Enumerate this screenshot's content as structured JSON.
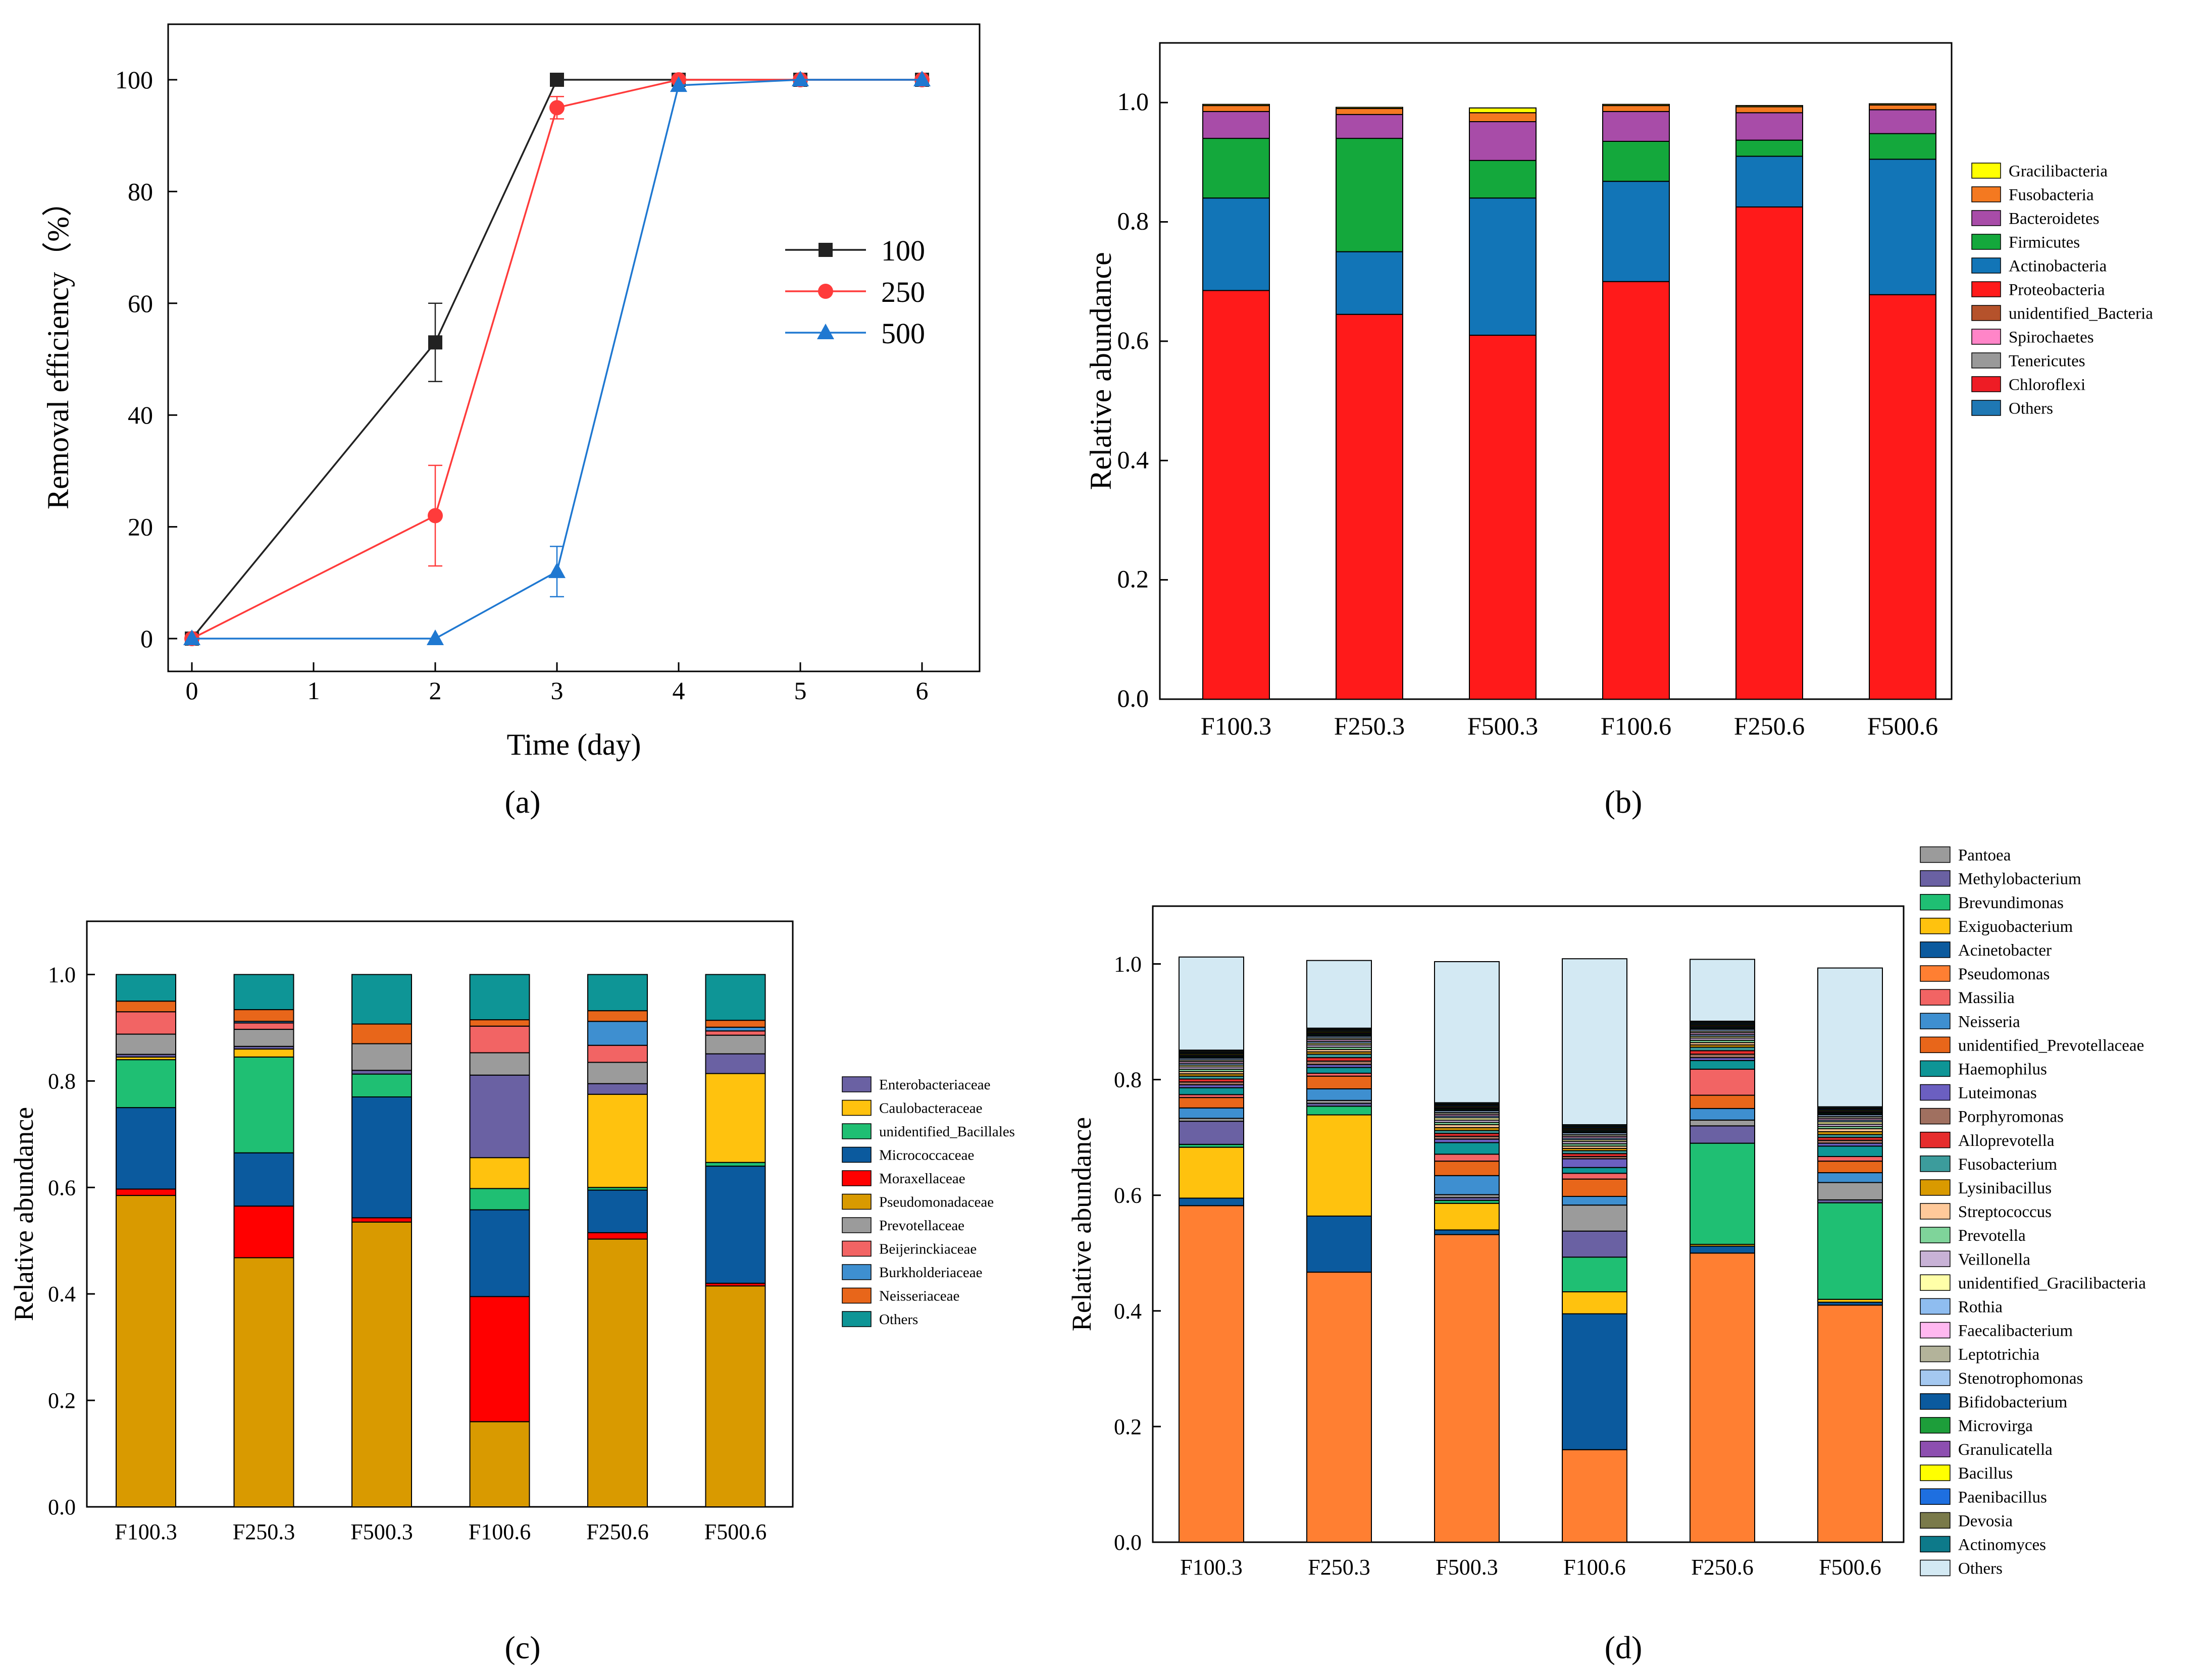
{
  "chart_data": [
    {
      "panel_label": "(a)",
      "type": "line",
      "xlabel": "Time (day)",
      "ylabel": "Removal efficiency（%）",
      "xlim": [
        -0.15,
        6.5
      ],
      "ylim": [
        -5,
        110
      ],
      "xticks": [
        "0",
        "1",
        "2",
        "3",
        "4",
        "5",
        "6"
      ],
      "yticks": [
        "0",
        "20",
        "40",
        "60",
        "80",
        "100"
      ],
      "legend_position": "center-right",
      "series": [
        {
          "name": "100",
          "color": "#222222",
          "marker": "square",
          "x": [
            0,
            2,
            3,
            4,
            5,
            6
          ],
          "y": [
            0,
            53,
            100,
            100,
            100,
            100
          ],
          "err": [
            0,
            7,
            0,
            0,
            0,
            0
          ]
        },
        {
          "name": "250",
          "color": "#ff3b3b",
          "marker": "circle",
          "x": [
            0,
            2,
            3,
            4,
            5,
            6
          ],
          "y": [
            0,
            22,
            95,
            100,
            100,
            100
          ],
          "err": [
            0,
            9,
            2,
            0,
            0,
            0
          ]
        },
        {
          "name": "500",
          "color": "#1f78d1",
          "marker": "triangle",
          "x": [
            0,
            2,
            3,
            4,
            5,
            6
          ],
          "y": [
            0,
            0,
            12,
            99,
            100,
            100
          ],
          "err": [
            0,
            0,
            4.5,
            0,
            0,
            0
          ]
        }
      ]
    },
    {
      "panel_label": "(b)",
      "type": "bar",
      "stacked": true,
      "xlabel": "",
      "ylabel": "Relative abundance",
      "ylim": [
        0,
        1.1
      ],
      "yticks": [
        "0.0",
        "0.2",
        "0.4",
        "0.6",
        "0.8",
        "1.0"
      ],
      "categories": [
        "F100.3",
        "F250.3",
        "F500.3",
        "F100.6",
        "F250.6",
        "F500.6"
      ],
      "legend_position": "right",
      "series": [
        {
          "name": "Others",
          "color": "#1f78b4",
          "values": [
            0,
            0,
            0,
            0,
            0,
            0
          ]
        },
        {
          "name": "Chloroflexi",
          "color": "#ee1c25",
          "values": [
            0,
            0,
            0,
            0,
            0,
            0
          ]
        },
        {
          "name": "Tenericutes",
          "color": "#999999",
          "values": [
            0,
            0,
            0,
            0,
            0,
            0
          ]
        },
        {
          "name": "Spirochaetes",
          "color": "#ff85c8",
          "values": [
            0,
            0,
            0,
            0,
            0,
            0
          ]
        },
        {
          "name": "unidentified_Bacteria",
          "color": "#b5522b",
          "values": [
            0,
            0,
            0,
            0,
            0,
            0
          ]
        },
        {
          "name": "Proteobacteria",
          "color": "#ff1a1a",
          "values": [
            0.685,
            0.645,
            0.61,
            0.7,
            0.825,
            0.678
          ]
        },
        {
          "name": "Actinobacteria",
          "color": "#1275b7",
          "values": [
            0.155,
            0.105,
            0.23,
            0.168,
            0.085,
            0.227
          ]
        },
        {
          "name": "Firmicutes",
          "color": "#14a83c",
          "values": [
            0.1,
            0.19,
            0.063,
            0.067,
            0.027,
            0.043
          ]
        },
        {
          "name": "Bacteroidetes",
          "color": "#a84ca8",
          "values": [
            0.045,
            0.04,
            0.065,
            0.05,
            0.046,
            0.04
          ]
        },
        {
          "name": "Fusobacteria",
          "color": "#f47920",
          "values": [
            0.01,
            0.01,
            0.015,
            0.01,
            0.01,
            0.008
          ]
        },
        {
          "name": "Gracilibacteria",
          "color": "#ffff00",
          "values": [
            0.002,
            0.002,
            0.008,
            0.002,
            0.002,
            0.002
          ]
        }
      ],
      "legend_order": [
        "Gracilibacteria",
        "Fusobacteria",
        "Bacteroidetes",
        "Firmicutes",
        "Actinobacteria",
        "Proteobacteria",
        "unidentified_Bacteria",
        "Spirochaetes",
        "Tenericutes",
        "Chloroflexi",
        "Others"
      ]
    },
    {
      "panel_label": "(c)",
      "type": "bar",
      "stacked": true,
      "xlabel": "",
      "ylabel": "Relative abundance",
      "ylim": [
        0,
        1.1
      ],
      "yticks": [
        "0.0",
        "0.2",
        "0.4",
        "0.6",
        "0.8",
        "1.0"
      ],
      "categories": [
        "F100.3",
        "F250.3",
        "F500.3",
        "F100.6",
        "F250.6",
        "F500.6"
      ],
      "legend_position": "right",
      "series": [
        {
          "name": "Pseudomonadaceae",
          "color": "#d99a00",
          "values": [
            0.585,
            0.468,
            0.535,
            0.16,
            0.503,
            0.415
          ]
        },
        {
          "name": "Moraxellaceae",
          "color": "#ff0000",
          "values": [
            0.012,
            0.097,
            0.008,
            0.235,
            0.012,
            0.005
          ]
        },
        {
          "name": "Micrococcaceae",
          "color": "#0b5a9e",
          "values": [
            0.153,
            0.1,
            0.227,
            0.163,
            0.08,
            0.22
          ]
        },
        {
          "name": "unidentified_Bacillales",
          "color": "#1fbf73",
          "values": [
            0.09,
            0.18,
            0.043,
            0.04,
            0.005,
            0.007
          ]
        },
        {
          "name": "Caulobacteraceae",
          "color": "#ffc20e",
          "values": [
            0.005,
            0.015,
            0,
            0.058,
            0.175,
            0.167
          ]
        },
        {
          "name": "Enterobacteriaceae",
          "color": "#6a61a3",
          "values": [
            0.005,
            0.005,
            0.007,
            0.155,
            0.02,
            0.037
          ]
        },
        {
          "name": "Prevotellaceae",
          "color": "#9b9b9b",
          "values": [
            0.038,
            0.032,
            0.05,
            0.042,
            0.04,
            0.035
          ]
        },
        {
          "name": "Beijerinckiaceae",
          "color": "#f26464",
          "values": [
            0.042,
            0.012,
            0,
            0.05,
            0.032,
            0.008
          ]
        },
        {
          "name": "Burkholderiaceae",
          "color": "#3e8fd0",
          "values": [
            0,
            0.003,
            0,
            0,
            0.045,
            0.007
          ]
        },
        {
          "name": "Neisseriaceae",
          "color": "#e8661a",
          "values": [
            0.02,
            0.022,
            0.037,
            0.012,
            0.02,
            0.013
          ]
        },
        {
          "name": "Others",
          "color": "#0e9596",
          "values": [
            0.05,
            0.066,
            0.093,
            0.085,
            0.068,
            0.086
          ]
        }
      ],
      "legend_order": [
        "Enterobacteriaceae",
        "Caulobacteraceae",
        "unidentified_Bacillales",
        "Micrococcaceae",
        "Moraxellaceae",
        "Pseudomonadaceae",
        "Prevotellaceae",
        "Beijerinckiaceae",
        "Burkholderiaceae",
        "Neisseriaceae",
        "Others"
      ]
    },
    {
      "panel_label": "(d)",
      "type": "bar",
      "stacked": true,
      "xlabel": "",
      "ylabel": "Relative abundance",
      "ylim": [
        0,
        1.1
      ],
      "yticks": [
        "0.0",
        "0.2",
        "0.4",
        "0.6",
        "0.8",
        "1.0"
      ],
      "categories": [
        "F100.3",
        "F250.3",
        "F500.3",
        "F100.6",
        "F250.6",
        "F500.6"
      ],
      "legend_position": "right",
      "series": [
        {
          "name": "Pseudomonas",
          "color": "#ff7f32",
          "values": [
            0.582,
            0.467,
            0.532,
            0.16,
            0.5,
            0.41
          ]
        },
        {
          "name": "Acinetobacter",
          "color": "#0b5a9e",
          "values": [
            0.013,
            0.097,
            0.008,
            0.235,
            0.012,
            0.005
          ]
        },
        {
          "name": "Exiguobacterium",
          "color": "#ffc20e",
          "values": [
            0.088,
            0.175,
            0.046,
            0.038,
            0.003,
            0.005
          ]
        },
        {
          "name": "Brevundimonas",
          "color": "#1fbf73",
          "values": [
            0.005,
            0.015,
            0.005,
            0.06,
            0.175,
            0.167
          ]
        },
        {
          "name": "Methylobacterium",
          "color": "#6a61a3",
          "values": [
            0.04,
            0.005,
            0.005,
            0.045,
            0.03,
            0.005
          ]
        },
        {
          "name": "Pantoea",
          "color": "#9b9b9b",
          "values": [
            0.005,
            0.005,
            0.005,
            0.045,
            0.01,
            0.03
          ]
        },
        {
          "name": "Neisseria",
          "color": "#3e8fd0",
          "values": [
            0.018,
            0.02,
            0.033,
            0.015,
            0.02,
            0.017
          ]
        },
        {
          "name": "unidentified_Prevotellaceae",
          "color": "#e8661a",
          "values": [
            0.018,
            0.022,
            0.025,
            0.03,
            0.023,
            0.02
          ]
        },
        {
          "name": "Massilia",
          "color": "#f26464",
          "values": [
            0.005,
            0.005,
            0.012,
            0.01,
            0.045,
            0.008
          ]
        },
        {
          "name": "Haemophilus",
          "color": "#0e9596",
          "values": [
            0.012,
            0.01,
            0.02,
            0.01,
            0.015,
            0.018
          ]
        },
        {
          "name": "Luteimonas",
          "color": "#6b5fc1",
          "values": [
            0.005,
            0.005,
            0.006,
            0.015,
            0.005,
            0.005
          ]
        },
        {
          "name": "Porphyromonas",
          "color": "#a07060",
          "values": [
            0.005,
            0.006,
            0.005,
            0.004,
            0.006,
            0.005
          ]
        },
        {
          "name": "Alloprevotella",
          "color": "#e62d2d",
          "values": [
            0.005,
            0.006,
            0.005,
            0.005,
            0.006,
            0.005
          ]
        },
        {
          "name": "Fusobacterium",
          "color": "#3c9c9c",
          "values": [
            0.005,
            0.006,
            0.005,
            0.005,
            0.006,
            0.005
          ]
        },
        {
          "name": "Lysinibacillus",
          "color": "#d99a00",
          "values": [
            0.004,
            0.004,
            0.005,
            0.004,
            0.004,
            0.005
          ]
        },
        {
          "name": "Streptococcus",
          "color": "#ffc99a",
          "values": [
            0.004,
            0.004,
            0.005,
            0.004,
            0.004,
            0.005
          ]
        },
        {
          "name": "Prevotella",
          "color": "#7fd49a",
          "values": [
            0.004,
            0.004,
            0.004,
            0.004,
            0.004,
            0.004
          ]
        },
        {
          "name": "Veillonella",
          "color": "#c8b2d6",
          "values": [
            0.004,
            0.004,
            0.004,
            0.004,
            0.004,
            0.004
          ]
        },
        {
          "name": "unidentified_Gracilibacteria",
          "color": "#ffffa8",
          "values": [
            0.003,
            0.003,
            0.004,
            0.003,
            0.003,
            0.004
          ]
        },
        {
          "name": "Rothia",
          "color": "#8fbdf0",
          "values": [
            0.003,
            0.003,
            0.003,
            0.003,
            0.003,
            0.003
          ]
        },
        {
          "name": "Faecalibacterium",
          "color": "#ffb8f0",
          "values": [
            0.003,
            0.003,
            0.003,
            0.003,
            0.003,
            0.003
          ]
        },
        {
          "name": "Leptotrichia",
          "color": "#b3b39a",
          "values": [
            0.003,
            0.003,
            0.003,
            0.003,
            0.003,
            0.003
          ]
        },
        {
          "name": "Stenotrophomonas",
          "color": "#a4c8f0",
          "values": [
            0.003,
            0.003,
            0.003,
            0.003,
            0.003,
            0.003
          ]
        },
        {
          "name": "Bifidobacterium",
          "color": "#0b5a9e",
          "values": [
            0.002,
            0.002,
            0.002,
            0.002,
            0.002,
            0.002
          ]
        },
        {
          "name": "Microvirga",
          "color": "#1d9e3a",
          "values": [
            0.002,
            0.002,
            0.002,
            0.002,
            0.002,
            0.002
          ]
        },
        {
          "name": "Granulicatella",
          "color": "#8d4fb0",
          "values": [
            0.002,
            0.002,
            0.002,
            0.002,
            0.002,
            0.002
          ]
        },
        {
          "name": "Bacillus",
          "color": "#ffff00",
          "values": [
            0.002,
            0.002,
            0.002,
            0.002,
            0.002,
            0.002
          ]
        },
        {
          "name": "Paenibacillus",
          "color": "#1e6fe0",
          "values": [
            0.002,
            0.002,
            0.002,
            0.002,
            0.002,
            0.002
          ]
        },
        {
          "name": "Devosia",
          "color": "#7a7a4a",
          "values": [
            0.002,
            0.002,
            0.002,
            0.002,
            0.002,
            0.002
          ]
        },
        {
          "name": "Actinomyces",
          "color": "#0d7a8a",
          "values": [
            0.002,
            0.002,
            0.002,
            0.002,
            0.002,
            0.002
          ]
        },
        {
          "name": "Others",
          "color": "#d3e9f3",
          "values": [
            0.161,
            0.117,
            0.244,
            0.287,
            0.107,
            0.24
          ]
        }
      ],
      "legend_order": [
        "Pantoea",
        "Methylobacterium",
        "Brevundimonas",
        "Exiguobacterium",
        "Acinetobacter",
        "Pseudomonas",
        "Massilia",
        "Neisseria",
        "unidentified_Prevotellaceae",
        "Haemophilus",
        "Luteimonas",
        "Porphyromonas",
        "Alloprevotella",
        "Fusobacterium",
        "Lysinibacillus",
        "Streptococcus",
        "Prevotella",
        "Veillonella",
        "unidentified_Gracilibacteria",
        "Rothia",
        "Faecalibacterium",
        "Leptotrichia",
        "Stenotrophomonas",
        "Bifidobacterium",
        "Microvirga",
        "Granulicatella",
        "Bacillus",
        "Paenibacillus",
        "Devosia",
        "Actinomyces",
        "Others"
      ]
    }
  ]
}
